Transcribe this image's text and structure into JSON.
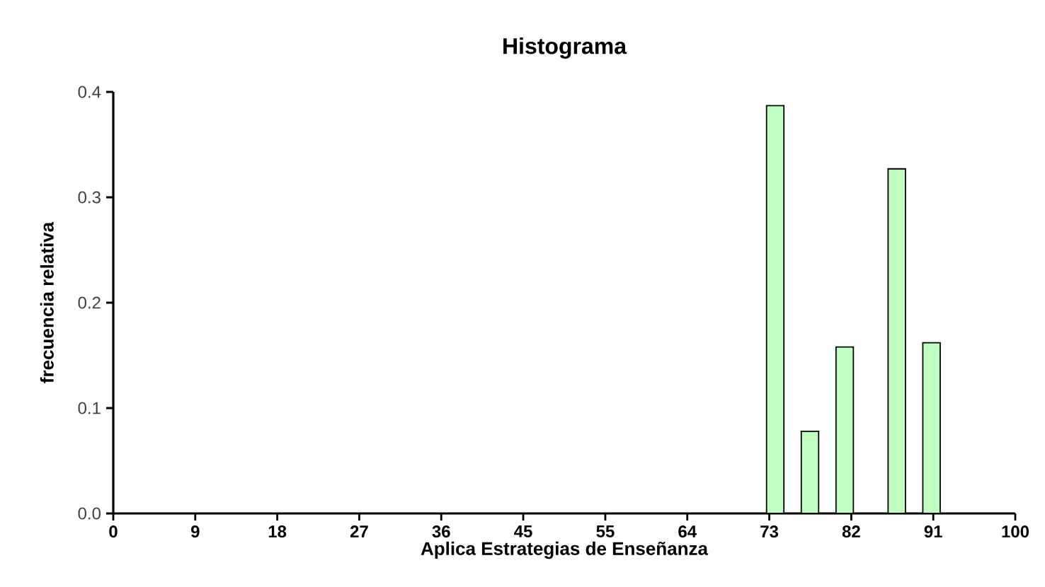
{
  "chart_data": {
    "type": "histogram",
    "title": "Histograma",
    "xlabel": "Aplica Estrategias de Enseñanza",
    "ylabel": "frecuencia relativa",
    "bins": [
      70.5,
      72.425,
      74.35,
      76.275,
      78.2,
      80.125,
      82.05,
      83.975,
      85.9,
      87.825,
      89.75,
      91.675,
      93.6
    ],
    "values": [
      0,
      0.387,
      0,
      0.078,
      0,
      0.158,
      0,
      0,
      0.327,
      0,
      0.162,
      0
    ],
    "colors": [
      "#000000",
      "#bfffbf",
      "#000000",
      "#bfffbf",
      "#000000",
      "#bfffbf",
      "#000000",
      "#000000",
      "#bfffbf",
      "#000000",
      "#bfffbf",
      "#000000"
    ],
    "xlim": [
      0,
      100
    ],
    "ylim": [
      0,
      0.4
    ],
    "xticks": [
      0,
      {
        "value": 9.09,
        "label": "9"
      },
      {
        "value": 18.18,
        "label": "18"
      },
      {
        "value": 27.27,
        "label": "27"
      },
      {
        "value": 36.36,
        "label": "36"
      },
      {
        "value": 45.45,
        "label": "45"
      },
      {
        "value": 54.55,
        "label": "55"
      },
      {
        "value": 63.64,
        "label": "64"
      },
      {
        "value": 72.73,
        "label": "73"
      },
      {
        "value": 81.82,
        "label": "82"
      },
      {
        "value": 90.91,
        "label": "91"
      },
      100
    ],
    "yticks": [
      {
        "value": 0,
        "label": "0.0"
      },
      0.1,
      0.2,
      0.3,
      0.4
    ],
    "grid": false
  }
}
